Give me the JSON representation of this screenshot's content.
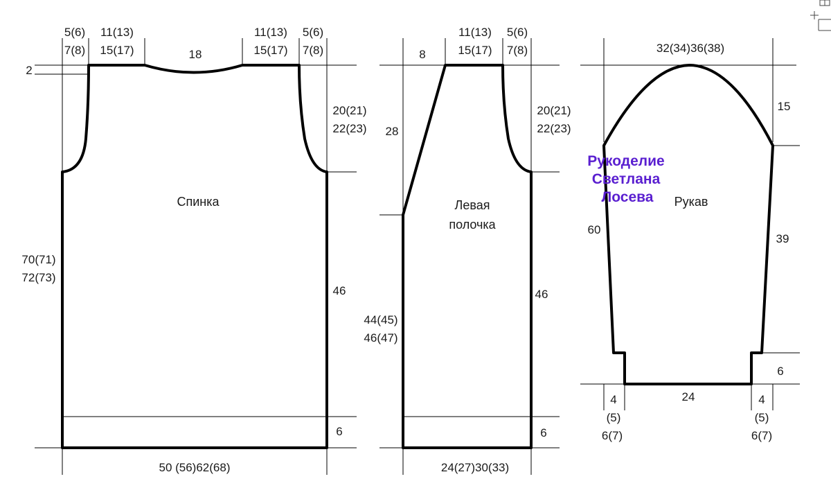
{
  "back": {
    "title": "Спинка",
    "dim_shoulder_edge_a": "5(6)",
    "dim_shoulder_edge_b": "7(8)",
    "dim_shoulder_a": "11(13)",
    "dim_shoulder_b": "15(17)",
    "dim_neck": "18",
    "dim_shoulder_right_a": "11(13)",
    "dim_shoulder_right_b": "15(17)",
    "dim_edge_right_a": "5(6)",
    "dim_edge_right_b": "7(8)",
    "dim_neck_depth": "2",
    "dim_armhole_a": "20(21)",
    "dim_armhole_b": "22(23)",
    "dim_length_a": "70(71)",
    "dim_length_b": "72(73)",
    "dim_side": "46",
    "dim_rib": "6",
    "dim_width": "50 (56)62(68)"
  },
  "front": {
    "title_line1": "Левая",
    "title_line2": "полочка",
    "dim_neck_width": "8",
    "dim_shoulder_a": "11(13)",
    "dim_shoulder_b": "15(17)",
    "dim_edge_a": "5(6)",
    "dim_edge_b": "7(8)",
    "dim_neck_depth": "28",
    "dim_armhole_a": "20(21)",
    "dim_armhole_b": "22(23)",
    "dim_length_a": "44(45)",
    "dim_length_b": "46(47)",
    "dim_side": "46",
    "dim_rib": "6",
    "dim_width": "24(27)30(33)"
  },
  "sleeve": {
    "title": "Рукав",
    "dim_top": "32(34)36(38)",
    "dim_cap": "15",
    "dim_length": "60",
    "dim_seam": "39",
    "dim_cuff": "6",
    "dim_cuff_width": "24",
    "dim_left_a": "4",
    "dim_left_b": "(5)",
    "dim_left_c": "6(7)",
    "dim_right_a": "4",
    "dim_right_b": "(5)",
    "dim_right_c": "6(7)"
  },
  "watermark": {
    "line1": "Рукоделие",
    "line2": "Светлана",
    "line3": "Лосева",
    "color": "#5a1fd0"
  },
  "icons": [
    "plus-cursor-icon"
  ]
}
